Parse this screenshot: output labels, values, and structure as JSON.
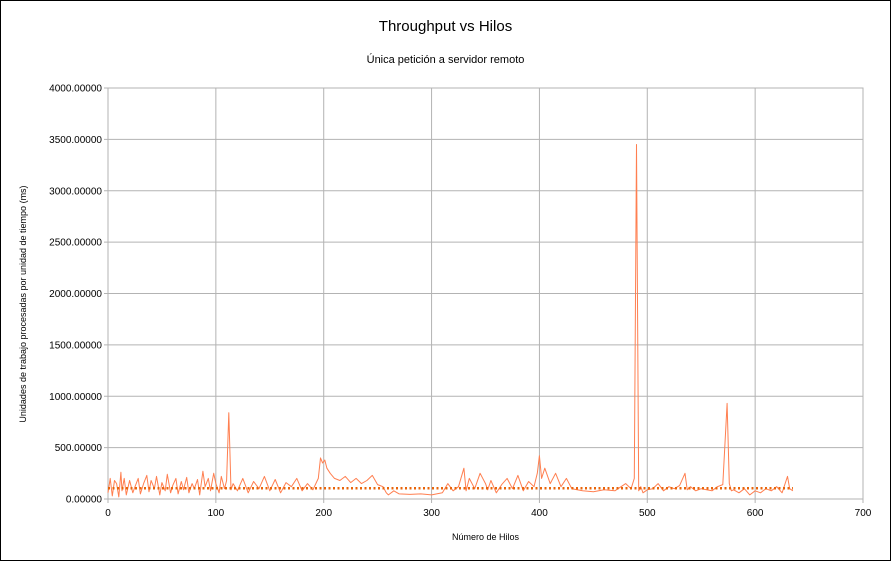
{
  "chart_data": {
    "type": "line",
    "title": "Throughput vs Hilos",
    "subtitle": "Única petición a servidor remoto",
    "xlabel": "Número de Hilos",
    "ylabel": "Unidades de trabajo procesadas por unidad de tiempo (ms)",
    "xlim": [
      0,
      700
    ],
    "ylim": [
      0,
      4000
    ],
    "xticks": [
      "0",
      "100",
      "200",
      "300",
      "400",
      "500",
      "600",
      "700"
    ],
    "yticks": [
      "0.00000",
      "500.00000",
      "1000.00000",
      "1500.00000",
      "2000.00000",
      "2500.00000",
      "3000.00000",
      "3500.00000",
      "4000.00000"
    ],
    "grid": true,
    "legend": "none",
    "series_color": "#ff7f50",
    "trend_color": "#e8640a",
    "trend": {
      "style": "dotted",
      "x": [
        0,
        635
      ],
      "y": [
        105,
        105
      ]
    },
    "series": [
      {
        "x": [
          0,
          2,
          4,
          6,
          8,
          10,
          12,
          13,
          15,
          17,
          20,
          23,
          25,
          28,
          30,
          33,
          36,
          38,
          40,
          43,
          45,
          48,
          50,
          53,
          55,
          58,
          60,
          63,
          65,
          68,
          70,
          73,
          75,
          78,
          80,
          83,
          85,
          88,
          90,
          93,
          95,
          98,
          100,
          103,
          105,
          108,
          110,
          112,
          114,
          116,
          120,
          125,
          130,
          135,
          140,
          145,
          150,
          155,
          160,
          165,
          170,
          175,
          180,
          185,
          190,
          195,
          197,
          199,
          201,
          203,
          206,
          210,
          215,
          220,
          225,
          230,
          235,
          240,
          245,
          250,
          255,
          258,
          260,
          265,
          270,
          280,
          290,
          300,
          310,
          315,
          320,
          325,
          330,
          332,
          335,
          340,
          345,
          350,
          352,
          355,
          360,
          365,
          370,
          375,
          380,
          385,
          390,
          395,
          398,
          400,
          402,
          405,
          410,
          415,
          420,
          425,
          430,
          440,
          450,
          460,
          470,
          480,
          485,
          488,
          490,
          492,
          494,
          496,
          500,
          505,
          510,
          515,
          520,
          525,
          530,
          535,
          537,
          540,
          545,
          550,
          555,
          560,
          565,
          570,
          574,
          576,
          578,
          580,
          585,
          590,
          595,
          600,
          605,
          610,
          615,
          620,
          625,
          630,
          632,
          635
        ],
        "y": [
          60,
          200,
          30,
          180,
          150,
          20,
          260,
          80,
          200,
          40,
          180,
          60,
          120,
          200,
          50,
          150,
          230,
          70,
          180,
          100,
          220,
          40,
          160,
          80,
          240,
          60,
          130,
          200,
          50,
          170,
          90,
          210,
          60,
          150,
          100,
          190,
          40,
          270,
          120,
          200,
          80,
          250,
          150,
          60,
          220,
          100,
          180,
          840,
          90,
          150,
          80,
          200,
          60,
          170,
          100,
          220,
          80,
          190,
          60,
          160,
          120,
          200,
          80,
          150,
          90,
          200,
          400,
          350,
          380,
          300,
          250,
          200,
          180,
          220,
          160,
          200,
          150,
          180,
          230,
          140,
          120,
          60,
          40,
          80,
          50,
          45,
          50,
          40,
          60,
          150,
          80,
          120,
          300,
          80,
          200,
          100,
          250,
          150,
          90,
          180,
          60,
          140,
          200,
          100,
          230,
          80,
          170,
          120,
          250,
          420,
          200,
          300,
          150,
          250,
          120,
          200,
          100,
          80,
          70,
          90,
          80,
          150,
          100,
          200,
          3450,
          80,
          120,
          60,
          90,
          100,
          150,
          80,
          120,
          100,
          130,
          250,
          90,
          120,
          80,
          100,
          90,
          80,
          120,
          140,
          930,
          150,
          80,
          90,
          60,
          100,
          40,
          80,
          60,
          100,
          80,
          120,
          60,
          220,
          100,
          80
        ]
      }
    ]
  }
}
